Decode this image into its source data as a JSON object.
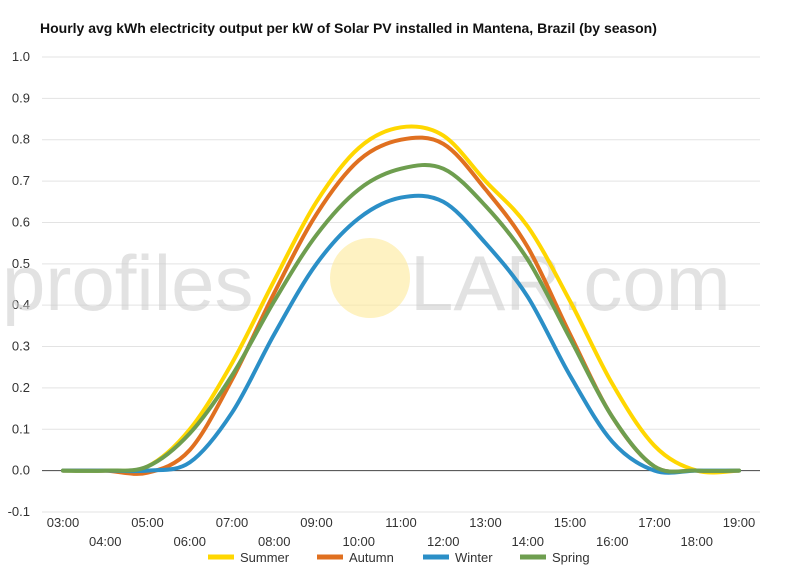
{
  "watermark": {
    "left": "profiles",
    "right": "LAR.com"
  },
  "chart_data": {
    "type": "line",
    "title": "Hourly avg kWh electricity output per kW of Solar PV installed in Mantena, Brazil (by season)",
    "xlabel": "",
    "ylabel": "",
    "ylim": [
      -0.1,
      1.0
    ],
    "yticks": [
      "-0.1",
      "0.0",
      "0.1",
      "0.2",
      "0.3",
      "0.4",
      "0.5",
      "0.6",
      "0.7",
      "0.8",
      "0.9",
      "1.0"
    ],
    "x": [
      "03:00",
      "04:00",
      "05:00",
      "06:00",
      "07:00",
      "08:00",
      "09:00",
      "10:00",
      "11:00",
      "12:00",
      "13:00",
      "14:00",
      "15:00",
      "16:00",
      "17:00",
      "18:00",
      "19:00"
    ],
    "grid": true,
    "legend_position": "bottom",
    "series": [
      {
        "name": "Summer",
        "color": "#FFD700",
        "values": [
          0.0,
          0.0,
          0.01,
          0.1,
          0.26,
          0.46,
          0.65,
          0.78,
          0.83,
          0.81,
          0.7,
          0.59,
          0.41,
          0.21,
          0.06,
          0.0,
          0.0
        ]
      },
      {
        "name": "Autumn",
        "color": "#E07020",
        "values": [
          0.0,
          0.0,
          -0.005,
          0.05,
          0.22,
          0.43,
          0.62,
          0.75,
          0.8,
          0.79,
          0.68,
          0.54,
          0.33,
          0.13,
          0.01,
          0.0,
          0.0
        ]
      },
      {
        "name": "Winter",
        "color": "#2B8FC7",
        "values": [
          0.0,
          0.0,
          0.0,
          0.02,
          0.14,
          0.33,
          0.5,
          0.61,
          0.66,
          0.65,
          0.55,
          0.42,
          0.23,
          0.07,
          0.0,
          0.0,
          0.0
        ]
      },
      {
        "name": "Spring",
        "color": "#6E9E4F",
        "values": [
          0.0,
          0.0,
          0.01,
          0.09,
          0.23,
          0.41,
          0.57,
          0.68,
          0.73,
          0.73,
          0.64,
          0.51,
          0.32,
          0.13,
          0.01,
          0.0,
          0.0
        ]
      }
    ]
  }
}
